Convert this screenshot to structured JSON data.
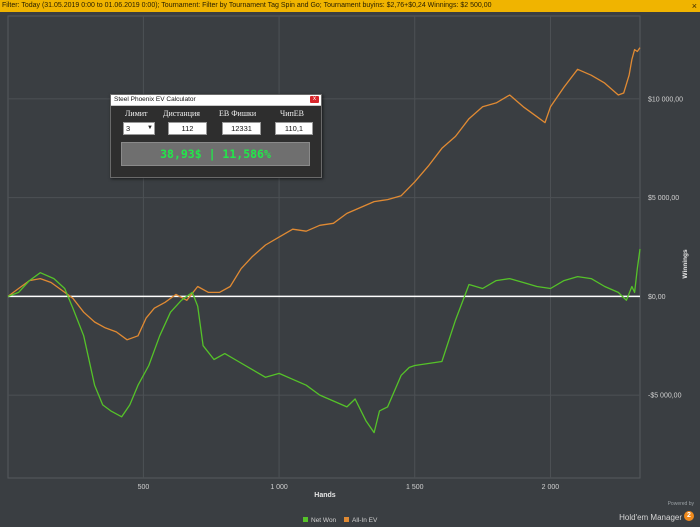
{
  "filter_bar": {
    "text": "Filter: Today (31.05.2019 0:00 to 01.06.2019 0:00); Tournament: Filter by Tournament Tag  Spin and Go; Tournament buyins: $2,76+$0,24  Winnings: $2 500,00",
    "close_label": "×"
  },
  "chart_data": {
    "type": "line",
    "xlabel": "Hands",
    "ylabel": "Winnings",
    "xlim": [
      1,
      2330
    ],
    "ylim": [
      -9200,
      14200
    ],
    "x_ticks": [
      500,
      1000,
      1500,
      2000
    ],
    "x_tick_labels": [
      "500",
      "1 000",
      "1 500",
      "2 000"
    ],
    "y_ticks": [
      10000,
      5000,
      0,
      -5000
    ],
    "y_tick_labels": [
      "$10 000,00",
      "$5 000,00",
      "$0,00",
      "-$5 000,00"
    ],
    "grid": true,
    "legend_placement": "bottom-center",
    "series": [
      {
        "name": "Net Won",
        "color": "#55c229",
        "x": [
          1,
          40,
          80,
          120,
          170,
          210,
          240,
          280,
          320,
          350,
          380,
          420,
          450,
          480,
          520,
          560,
          600,
          640,
          680,
          700,
          720,
          760,
          800,
          850,
          900,
          950,
          1000,
          1050,
          1100,
          1150,
          1200,
          1250,
          1280,
          1320,
          1350,
          1370,
          1400,
          1450,
          1480,
          1500,
          1550,
          1600,
          1650,
          1700,
          1750,
          1800,
          1850,
          1900,
          1950,
          2000,
          2050,
          2100,
          2150,
          2200,
          2250,
          2280,
          2300,
          2310,
          2320,
          2330
        ],
        "y": [
          0,
          200,
          800,
          1200,
          900,
          400,
          -600,
          -2000,
          -4500,
          -5500,
          -5800,
          -6100,
          -5500,
          -4500,
          -3500,
          -2000,
          -800,
          -200,
          200,
          -500,
          -2500,
          -3200,
          -2900,
          -3300,
          -3700,
          -4100,
          -3900,
          -4200,
          -4500,
          -5000,
          -5300,
          -5600,
          -5200,
          -6300,
          -6900,
          -5800,
          -5600,
          -4000,
          -3600,
          -3500,
          -3400,
          -3300,
          -1200,
          600,
          400,
          800,
          900,
          700,
          500,
          400,
          800,
          1000,
          900,
          500,
          200,
          -200,
          500,
          200,
          1400,
          2400
        ]
      },
      {
        "name": "All-In EV",
        "color": "#e08a33",
        "x": [
          1,
          40,
          80,
          120,
          160,
          200,
          240,
          280,
          320,
          360,
          400,
          440,
          480,
          510,
          540,
          580,
          620,
          660,
          700,
          740,
          780,
          820,
          860,
          900,
          950,
          1000,
          1050,
          1100,
          1150,
          1200,
          1250,
          1300,
          1350,
          1400,
          1450,
          1500,
          1550,
          1600,
          1650,
          1700,
          1750,
          1800,
          1850,
          1900,
          1950,
          1980,
          2000,
          2050,
          2100,
          2150,
          2200,
          2250,
          2270,
          2290,
          2300,
          2310,
          2320,
          2330
        ],
        "y": [
          0,
          400,
          800,
          900,
          700,
          300,
          -100,
          -800,
          -1300,
          -1600,
          -1800,
          -2200,
          -2000,
          -1100,
          -600,
          -300,
          100,
          -200,
          500,
          200,
          200,
          500,
          1400,
          2000,
          2600,
          3000,
          3400,
          3300,
          3600,
          3700,
          4200,
          4500,
          4800,
          4900,
          5100,
          5800,
          6600,
          7500,
          8100,
          9000,
          9600,
          9800,
          10200,
          9600,
          9100,
          8800,
          9600,
          10600,
          11500,
          11200,
          10800,
          10200,
          10300,
          11200,
          12000,
          12500,
          12400,
          12600
        ]
      }
    ]
  },
  "calculator": {
    "title": "Steel Phoenix EV Calculator",
    "close_label": "x",
    "labels": [
      "Лимит",
      "Дистанция",
      "ЕВ Фишки",
      "ЧипЕВ"
    ],
    "limit_value": "3",
    "distance_value": "112",
    "ev_chips_value": "12331",
    "chip_ev_value": "110,1",
    "result_text": "38,93$ | 11,586%"
  },
  "watermark": {
    "powered_by": "Powered by",
    "product": "Hold'em Manager",
    "badge": "2"
  }
}
